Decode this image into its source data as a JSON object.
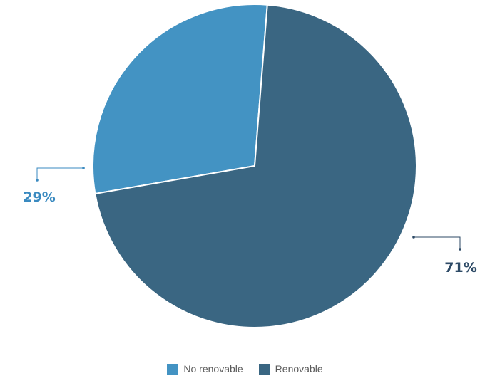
{
  "chart_data": {
    "type": "pie",
    "series": [
      {
        "name": "No renovable",
        "value": 29,
        "label": "29%",
        "color": "#4393c3"
      },
      {
        "name": "Renovable",
        "value": 71,
        "label": "71%",
        "color": "#3a6682"
      }
    ],
    "label_colors": [
      "#3a8ac0",
      "#2d4a66"
    ],
    "legend_position": "bottom"
  }
}
